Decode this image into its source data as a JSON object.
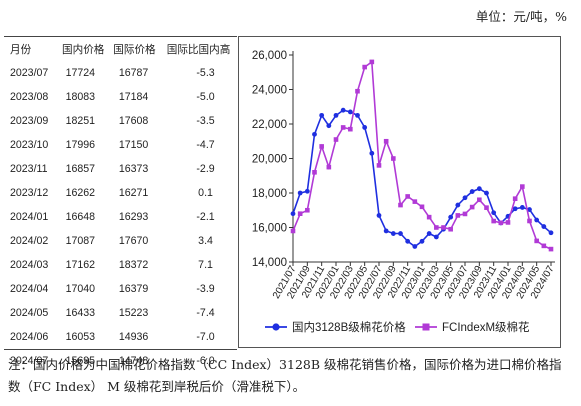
{
  "unit_text": "单位：元/吨，%",
  "table": {
    "headers": [
      "月份",
      "国内价格",
      "国际价格",
      "国际比国内高"
    ],
    "rows": [
      [
        "2023/07",
        "17724",
        "16787",
        "-5.3"
      ],
      [
        "2023/08",
        "18083",
        "17184",
        "-5.0"
      ],
      [
        "2023/09",
        "18251",
        "17608",
        "-3.5"
      ],
      [
        "2023/10",
        "17996",
        "17150",
        "-4.7"
      ],
      [
        "2023/11",
        "16857",
        "16373",
        "-2.9"
      ],
      [
        "2023/12",
        "16262",
        "16271",
        "0.1"
      ],
      [
        "2024/01",
        "16648",
        "16293",
        "-2.1"
      ],
      [
        "2024/02",
        "17087",
        "17670",
        "3.4"
      ],
      [
        "2024/03",
        "17162",
        "18372",
        "7.1"
      ],
      [
        "2024/04",
        "17040",
        "16379",
        "-3.9"
      ],
      [
        "2024/05",
        "16433",
        "15223",
        "-7.4"
      ],
      [
        "2024/06",
        "16053",
        "14936",
        "-7.0"
      ],
      [
        "2024/07",
        "15695",
        "14748",
        "-6.0"
      ]
    ]
  },
  "chart_data": {
    "type": "line",
    "ylim": [
      14000,
      26000
    ],
    "yticks": [
      14000,
      16000,
      18000,
      20000,
      22000,
      24000,
      26000
    ],
    "ytick_labels": [
      "14,000",
      "16,000",
      "18,000",
      "20,000",
      "22,000",
      "24,000",
      "26,000"
    ],
    "x": [
      "2021/07",
      "2021/08",
      "2021/09",
      "2021/10",
      "2021/11",
      "2021/12",
      "2022/01",
      "2022/02",
      "2022/03",
      "2022/04",
      "2022/05",
      "2022/06",
      "2022/07",
      "2022/08",
      "2022/09",
      "2022/10",
      "2022/11",
      "2022/12",
      "2023/01",
      "2023/02",
      "2023/03",
      "2023/04",
      "2023/05",
      "2023/06",
      "2023/07",
      "2023/08",
      "2023/09",
      "2023/10",
      "2023/11",
      "2023/12",
      "2024/01",
      "2024/02",
      "2024/03",
      "2024/04",
      "2024/05",
      "2024/06",
      "2024/07"
    ],
    "xtick_labels": [
      "2021/07",
      "2021/09",
      "2021/11",
      "2022/01",
      "2022/03",
      "2022/05",
      "2022/07",
      "2022/09",
      "2022/11",
      "2023/01",
      "2023/03",
      "2023/05",
      "2023/07",
      "2023/09",
      "2023/11",
      "2024/01",
      "2024/03",
      "2024/05",
      "2024/07"
    ],
    "legend_position": "bottom",
    "grid": false,
    "series": [
      {
        "name": "国内3128B级棉花价格",
        "color": "#1f2fe0",
        "marker": "circle",
        "values": [
          16800,
          18000,
          18100,
          21400,
          22500,
          21900,
          22500,
          22800,
          22700,
          22500,
          21800,
          20300,
          16700,
          15800,
          15650,
          15650,
          15200,
          14900,
          15200,
          15650,
          15450,
          15900,
          16600,
          17300,
          17724,
          18083,
          18251,
          17996,
          16857,
          16262,
          16648,
          17087,
          17162,
          17040,
          16433,
          16053,
          15695
        ]
      },
      {
        "name": "FCIndexM级棉花",
        "color": "#b13ad6",
        "marker": "square",
        "values": [
          15800,
          16800,
          17000,
          19200,
          20700,
          19500,
          21100,
          21800,
          21700,
          23900,
          25300,
          25600,
          19600,
          21000,
          20000,
          17300,
          17800,
          17500,
          17200,
          16600,
          16000,
          16000,
          15900,
          16700,
          16787,
          17184,
          17608,
          17150,
          16373,
          16271,
          16293,
          17670,
          18372,
          16379,
          15223,
          14936,
          14748
        ]
      }
    ]
  },
  "note_text": "注：国内价格为中国棉花价格指数（CC Index）3128B 级棉花销售价格，国际价格为进口棉价格指数（FC Index） M 级棉花到岸税后价（滑准税下）。"
}
